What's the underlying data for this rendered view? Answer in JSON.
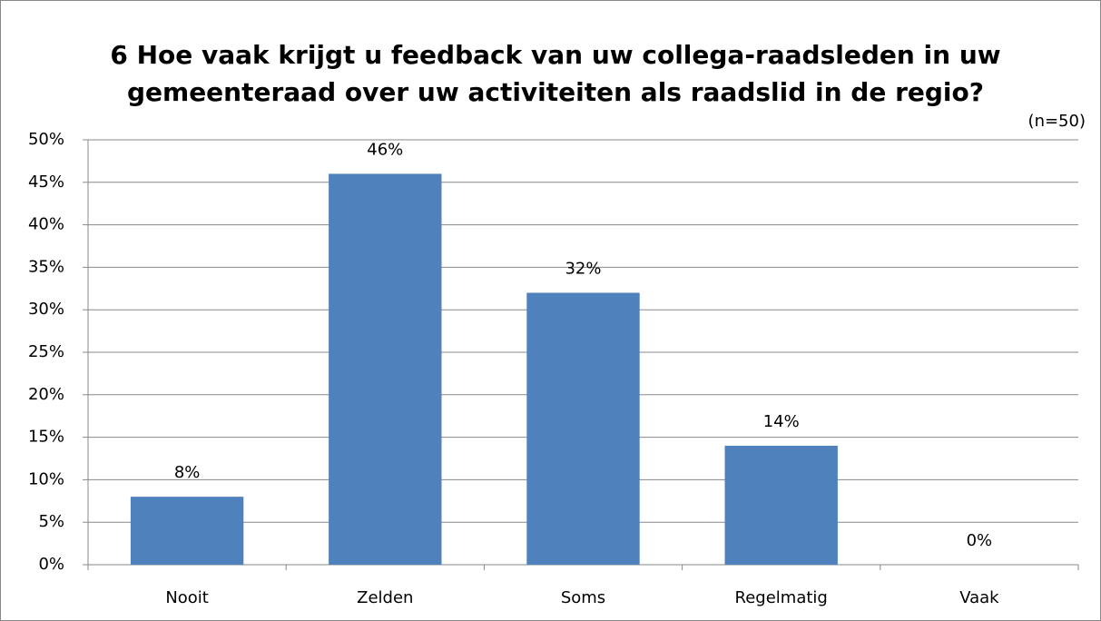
{
  "chart_data": {
    "type": "bar",
    "title": "6 Hoe vaak krijgt u feedback van uw collega-raadsleden in uw gemeenteraad over uw activiteiten als raadslid in de regio?",
    "subtitle": "(n=50)",
    "categories": [
      "Nooit",
      "Zelden",
      "Soms",
      "Regelmatig",
      "Vaak"
    ],
    "values": [
      8,
      46,
      32,
      14,
      0
    ],
    "value_labels": [
      "8%",
      "46%",
      "32%",
      "14%",
      "0%"
    ],
    "color": "#4f81bd",
    "ylim": [
      0,
      50
    ],
    "yticks": [
      {
        "value": 0,
        "label": "0%"
      },
      {
        "value": 5,
        "label": "5%"
      },
      {
        "value": 10,
        "label": "10%"
      },
      {
        "value": 15,
        "label": "15%"
      },
      {
        "value": 20,
        "label": "20%"
      },
      {
        "value": 25,
        "label": "25%"
      },
      {
        "value": 30,
        "label": "30%"
      },
      {
        "value": 35,
        "label": "35%"
      },
      {
        "value": 40,
        "label": "40%"
      },
      {
        "value": 45,
        "label": "45%"
      },
      {
        "value": 50,
        "label": "50%"
      }
    ],
    "grid": true
  }
}
